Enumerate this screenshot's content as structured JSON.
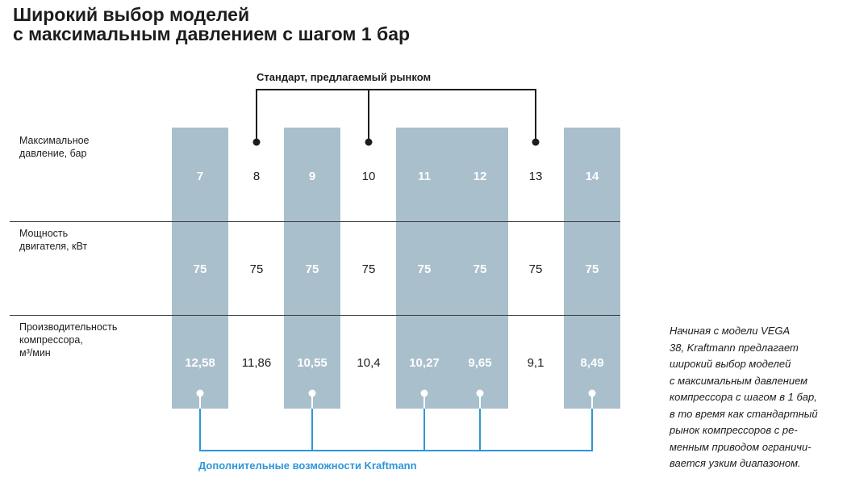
{
  "title": {
    "line1": "Широкий выбор моделей",
    "line2": "с максимальным давлением с шагом 1 бар"
  },
  "standard_bracket_label": "Стандарт, предлагаемый рынком",
  "kraftmann_bracket_label": "Дополнительные возможности Kraftmann",
  "row_labels": {
    "pressure": [
      "Максимальное",
      "давление, бар"
    ],
    "power": [
      "Мощность",
      "двигателя, кВт"
    ],
    "capacity": [
      "Производительность",
      "компрессора,",
      "м³/мин"
    ]
  },
  "models": [
    {
      "pressure": "7",
      "power": "75",
      "capacity": "12,58",
      "kraftmann": true
    },
    {
      "pressure": "8",
      "power": "75",
      "capacity": "11,86",
      "kraftmann": false
    },
    {
      "pressure": "9",
      "power": "75",
      "capacity": "10,55",
      "kraftmann": true
    },
    {
      "pressure": "10",
      "power": "75",
      "capacity": "10,4",
      "kraftmann": false
    },
    {
      "pressure": "11",
      "power": "75",
      "capacity": "10,27",
      "kraftmann": true
    },
    {
      "pressure": "12",
      "power": "75",
      "capacity": "9,65",
      "kraftmann": true
    },
    {
      "pressure": "13",
      "power": "75",
      "capacity": "9,1",
      "kraftmann": false
    },
    {
      "pressure": "14",
      "power": "75",
      "capacity": "8,49",
      "kraftmann": true
    }
  ],
  "note_lines": [
    "Начиная с модели VEGA",
    "38, Kraftmann предлагает",
    "широкий выбор моделей",
    "с максимальным давлением",
    "компрессора с шагом в 1 бар,",
    "в то время как стандартный",
    "рынок компрессоров с ре-",
    "менным приводом ограничи-",
    "вается узким диапазоном."
  ],
  "colors": {
    "highlight_column": "#a9bfcc",
    "kraftmann_accent": "#2e96d8",
    "text": "#1d1d1b",
    "line": "#3a3a3a"
  }
}
